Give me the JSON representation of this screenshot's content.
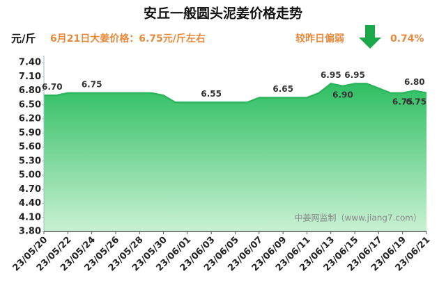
{
  "chart_data": {
    "type": "area",
    "title": "安丘一般圆头泥姜价格走势",
    "y_label": "元/斤",
    "subtitle": "6月21日大姜价格：6.75元/斤左右",
    "change_text": "较昨日偏弱",
    "change_value": "0.74%",
    "watermark": "中姜网监制（www.jiang7.com）",
    "categories": [
      "23/05/20",
      null,
      "23/05/22",
      null,
      "23/05/24",
      null,
      "23/05/26",
      null,
      "23/05/28",
      null,
      "23/05/30",
      null,
      "23/06/01",
      null,
      "23/06/03",
      null,
      "23/06/05",
      null,
      "23/06/07",
      null,
      "23/06/09",
      null,
      "23/06/11",
      null,
      "23/06/13",
      null,
      "23/06/15",
      null,
      "23/06/17",
      null,
      "23/06/19",
      null,
      "23/06/21"
    ],
    "values": [
      6.7,
      6.7,
      6.75,
      6.75,
      6.75,
      6.75,
      6.75,
      6.75,
      6.75,
      6.75,
      6.7,
      6.55,
      6.55,
      6.55,
      6.55,
      6.55,
      6.55,
      6.55,
      6.65,
      6.65,
      6.65,
      6.65,
      6.65,
      6.75,
      6.95,
      6.9,
      6.95,
      6.95,
      6.85,
      6.75,
      6.75,
      6.8,
      6.75
    ],
    "value_labels": [
      "6.70",
      null,
      null,
      null,
      "6.75",
      null,
      null,
      null,
      null,
      null,
      null,
      null,
      null,
      null,
      "6.55",
      null,
      null,
      null,
      null,
      null,
      "6.65",
      null,
      null,
      null,
      "6.95",
      "6.90",
      "6.95",
      null,
      null,
      null,
      "6.75",
      "6.80",
      "6.75"
    ],
    "color": "#2db55d",
    "ylim": [
      3.8,
      7.4
    ],
    "yticks": [
      {
        "value": 3.8,
        "label": "3.80"
      },
      {
        "value": 4.1,
        "label": "4.10"
      },
      {
        "value": 4.4,
        "label": "4.40"
      },
      {
        "value": 4.7,
        "label": "4.70"
      },
      {
        "value": 5.0,
        "label": "5.00"
      },
      {
        "value": 5.3,
        "label": "5.30"
      },
      {
        "value": 5.6,
        "label": "5.60"
      },
      {
        "value": 5.9,
        "label": "5.90"
      },
      {
        "value": 6.2,
        "label": "6.20"
      },
      {
        "value": 6.5,
        "label": "6.50"
      },
      {
        "value": 6.8,
        "label": "6.80"
      },
      {
        "value": 7.1,
        "label": "7.10"
      },
      {
        "value": 7.4,
        "label": "7.40"
      }
    ]
  }
}
